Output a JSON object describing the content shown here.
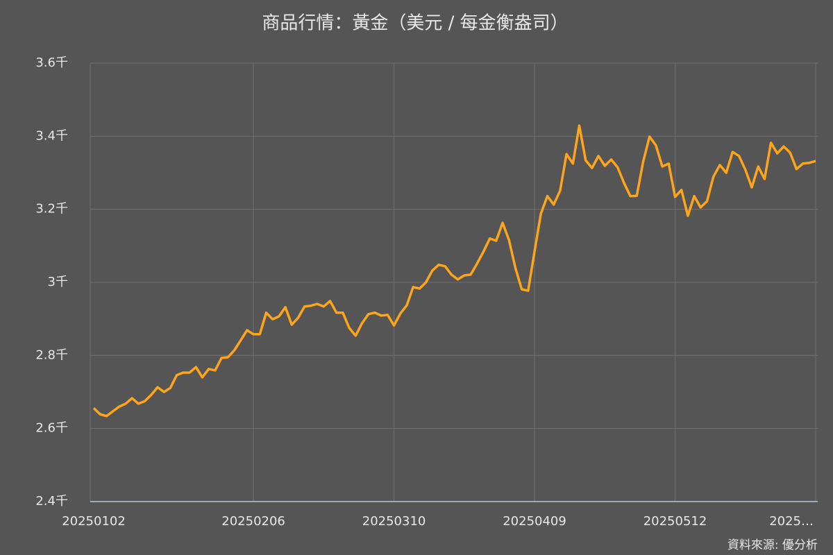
{
  "chart_data": {
    "type": "line",
    "title": "商品行情：黃金（美元 / 每金衡盎司）",
    "source": "資料來源: 優分析",
    "categories": [
      "20250102",
      null,
      null,
      null,
      null,
      null,
      null,
      null,
      null,
      null,
      null,
      null,
      null,
      null,
      null,
      null,
      null,
      null,
      null,
      null,
      null,
      null,
      null,
      null,
      null,
      "20250206",
      null,
      null,
      null,
      null,
      null,
      null,
      null,
      null,
      null,
      null,
      null,
      null,
      null,
      null,
      null,
      null,
      null,
      null,
      null,
      null,
      null,
      "20250310",
      null,
      null,
      null,
      null,
      null,
      null,
      null,
      null,
      null,
      null,
      null,
      null,
      null,
      null,
      null,
      null,
      null,
      null,
      null,
      null,
      null,
      "20250409",
      null,
      null,
      null,
      null,
      null,
      null,
      null,
      null,
      null,
      null,
      null,
      null,
      null,
      null,
      null,
      null,
      null,
      null,
      null,
      null,
      null,
      "20250512",
      null,
      null,
      null,
      null,
      null,
      null,
      null,
      null,
      null,
      null,
      null,
      null,
      null,
      null,
      null,
      null,
      null,
      null,
      null,
      null,
      null,
      "2025…"
    ],
    "series": [
      {
        "name": "黃金",
        "color": "#ffa51a",
        "values": [
          2656,
          2639,
          2634,
          2647,
          2660,
          2668,
          2683,
          2668,
          2675,
          2692,
          2713,
          2700,
          2711,
          2746,
          2753,
          2753,
          2768,
          2740,
          2763,
          2759,
          2793,
          2795,
          2814,
          2841,
          2869,
          2858,
          2858,
          2917,
          2899,
          2907,
          2932,
          2884,
          2903,
          2934,
          2936,
          2941,
          2934,
          2949,
          2917,
          2917,
          2875,
          2854,
          2888,
          2913,
          2917,
          2909,
          2911,
          2882,
          2915,
          2937,
          2987,
          2983,
          3000,
          3032,
          3048,
          3044,
          3021,
          3008,
          3019,
          3021,
          3051,
          3084,
          3120,
          3114,
          3163,
          3116,
          3040,
          2981,
          2977,
          3084,
          3188,
          3236,
          3213,
          3251,
          3351,
          3325,
          3429,
          3334,
          3313,
          3346,
          3319,
          3336,
          3315,
          3272,
          3236,
          3237,
          3330,
          3399,
          3375,
          3317,
          3325,
          3234,
          3253,
          3182,
          3236,
          3205,
          3222,
          3289,
          3321,
          3300,
          3357,
          3346,
          3308,
          3260,
          3317,
          3283,
          3382,
          3353,
          3372,
          3355,
          3310,
          3325,
          3327,
          3332
        ]
      }
    ],
    "ylim": [
      2400,
      3600
    ],
    "yticks": [
      {
        "value": 2400,
        "label": "2.4千"
      },
      {
        "value": 2600,
        "label": "2.6千"
      },
      {
        "value": 2800,
        "label": "2.8千"
      },
      {
        "value": 3000,
        "label": "3千"
      },
      {
        "value": 3200,
        "label": "3.2千"
      },
      {
        "value": 3400,
        "label": "3.4千"
      },
      {
        "value": 3600,
        "label": "3.6千"
      }
    ],
    "grid": true
  }
}
